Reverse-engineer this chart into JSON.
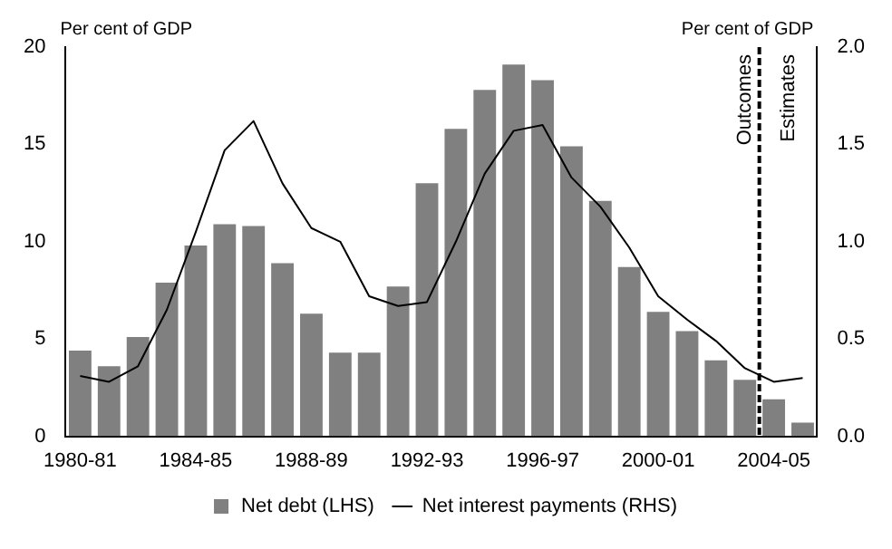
{
  "chart_data": {
    "type": "bar",
    "ylabel": "Per cent of GDP",
    "y2label": "Per cent of GDP",
    "categories": [
      "1980-81",
      null,
      null,
      null,
      "1984-85",
      null,
      null,
      null,
      "1988-89",
      null,
      null,
      null,
      "1992-93",
      null,
      null,
      null,
      "1996-97",
      null,
      null,
      null,
      "2000-01",
      null,
      null,
      null,
      "2004-05",
      null
    ],
    "series": [
      {
        "name": "Net debt (LHS)",
        "color": "#808080",
        "values": [
          4.4,
          3.6,
          5.1,
          7.9,
          9.8,
          10.9,
          10.8,
          8.9,
          6.3,
          4.3,
          4.3,
          7.7,
          13.0,
          15.8,
          17.8,
          19.1,
          18.3,
          14.9,
          12.1,
          8.7,
          6.4,
          5.4,
          3.9,
          2.9,
          1.9,
          0.7
        ]
      },
      {
        "name": "Net interest payments (RHS)",
        "type": "line",
        "axis": "y2",
        "color": "#000000",
        "values": [
          0.31,
          0.28,
          0.36,
          0.65,
          1.05,
          1.47,
          1.62,
          1.3,
          1.07,
          1.0,
          0.72,
          0.67,
          0.69,
          1.0,
          1.35,
          1.57,
          1.6,
          1.33,
          1.18,
          0.97,
          0.72,
          0.6,
          0.49,
          0.35,
          0.28,
          0.3
        ]
      }
    ],
    "ylim": [
      0,
      20
    ],
    "yticks": [
      0,
      5,
      10,
      15,
      20
    ],
    "y2lim": [
      0,
      2
    ],
    "y2ticks": [
      {
        "value": 0,
        "label": "0.0"
      },
      {
        "value": 0.5,
        "label": "0.5"
      },
      {
        "value": 1,
        "label": "1.0"
      },
      {
        "value": 1.5,
        "label": "1.5"
      },
      {
        "value": 2,
        "label": "2.0"
      }
    ],
    "annotations": [
      "Outcomes",
      "Estimates"
    ],
    "grid": false,
    "legend": "bottom",
    "marker": "none"
  }
}
